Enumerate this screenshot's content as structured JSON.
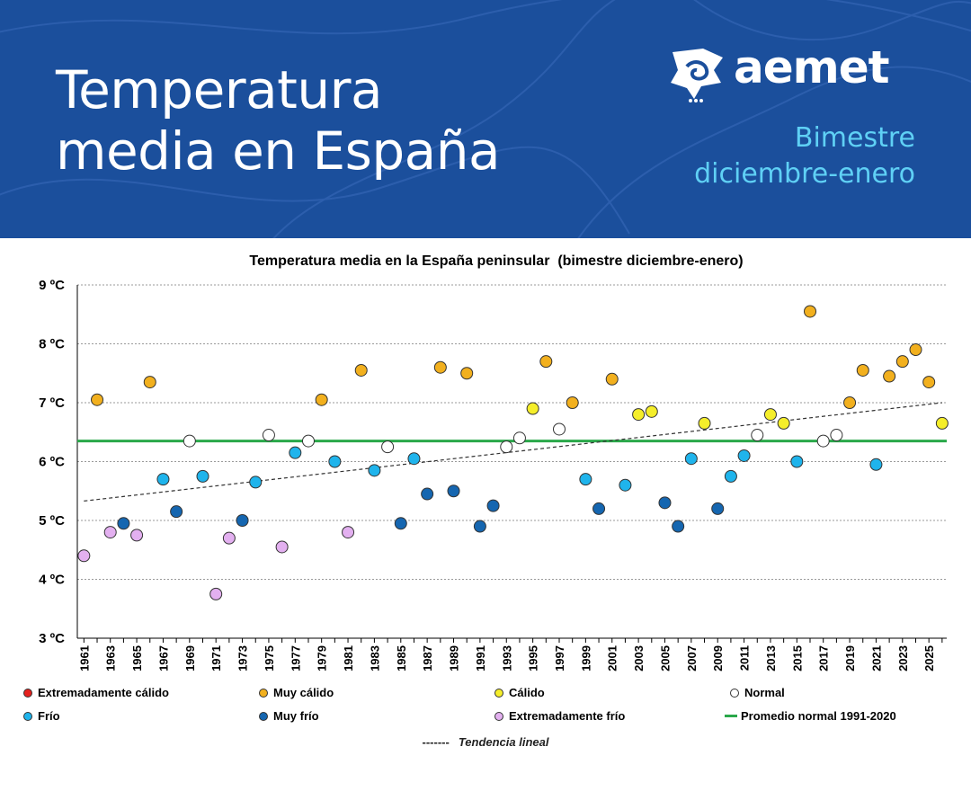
{
  "header": {
    "title": "Temperatura\nmedia en España",
    "brand": "aemet",
    "subtitle": "Bimestre\ndiciembre-enero",
    "colors": {
      "background": "#1b4f9c",
      "title": "#ffffff",
      "subtitle": "#5fd0f5"
    }
  },
  "chart_data": {
    "type": "scatter",
    "title": "Temperatura media en la España peninsular  (bimestre diciembre-enero)",
    "xlabel": "",
    "ylabel": "",
    "ylim": [
      3,
      9
    ],
    "xlim": [
      1961,
      2026
    ],
    "y_unit": "ºC",
    "y_ticks": [
      3,
      4,
      5,
      6,
      7,
      8,
      9
    ],
    "x_tick_labels": [
      1961,
      1963,
      1965,
      1967,
      1969,
      1971,
      1973,
      1975,
      1977,
      1979,
      1981,
      1983,
      1985,
      1987,
      1989,
      1991,
      1993,
      1995,
      1997,
      1999,
      2001,
      2003,
      2005,
      2007,
      2009,
      2011,
      2013,
      2015,
      2017,
      2019,
      2021,
      2023,
      2025
    ],
    "grid": true,
    "categories": {
      "ec": {
        "label": "Extremadamente cálido",
        "color": "#e5211e"
      },
      "mc": {
        "label": "Muy cálido",
        "color": "#f2b01e"
      },
      "c": {
        "label": "Cálido",
        "color": "#f5ee2a"
      },
      "n": {
        "label": "Normal",
        "color": "#ffffff"
      },
      "f": {
        "label": "Frío",
        "color": "#1fb4ec"
      },
      "mf": {
        "label": "Muy frío",
        "color": "#1566b0"
      },
      "ef": {
        "label": "Extremadamente frío",
        "color": "#e3b0f0"
      }
    },
    "points": [
      [
        1961,
        4.4,
        "ef"
      ],
      [
        1962,
        7.05,
        "mc"
      ],
      [
        1963,
        4.8,
        "ef"
      ],
      [
        1964,
        4.95,
        "mf"
      ],
      [
        1965,
        4.75,
        "ef"
      ],
      [
        1966,
        7.35,
        "mc"
      ],
      [
        1967,
        5.7,
        "f"
      ],
      [
        1968,
        5.15,
        "mf"
      ],
      [
        1969,
        6.35,
        "n"
      ],
      [
        1970,
        5.75,
        "f"
      ],
      [
        1971,
        3.75,
        "ef"
      ],
      [
        1972,
        4.7,
        "ef"
      ],
      [
        1973,
        5.0,
        "mf"
      ],
      [
        1974,
        5.65,
        "f"
      ],
      [
        1975,
        6.45,
        "n"
      ],
      [
        1976,
        4.55,
        "ef"
      ],
      [
        1977,
        6.15,
        "f"
      ],
      [
        1978,
        6.35,
        "n"
      ],
      [
        1979,
        7.05,
        "mc"
      ],
      [
        1980,
        6.0,
        "f"
      ],
      [
        1981,
        4.8,
        "ef"
      ],
      [
        1982,
        7.55,
        "mc"
      ],
      [
        1983,
        5.85,
        "f"
      ],
      [
        1984,
        6.25,
        "n"
      ],
      [
        1985,
        4.95,
        "mf"
      ],
      [
        1986,
        6.05,
        "f"
      ],
      [
        1987,
        5.45,
        "mf"
      ],
      [
        1988,
        7.6,
        "mc"
      ],
      [
        1989,
        5.5,
        "mf"
      ],
      [
        1990,
        7.5,
        "mc"
      ],
      [
        1991,
        4.9,
        "mf"
      ],
      [
        1992,
        5.25,
        "mf"
      ],
      [
        1993,
        6.25,
        "n"
      ],
      [
        1994,
        6.4,
        "n"
      ],
      [
        1995,
        6.9,
        "c"
      ],
      [
        1996,
        7.7,
        "mc"
      ],
      [
        1997,
        6.55,
        "n"
      ],
      [
        1998,
        7.0,
        "mc"
      ],
      [
        1999,
        5.7,
        "f"
      ],
      [
        2000,
        5.2,
        "mf"
      ],
      [
        2001,
        7.4,
        "mc"
      ],
      [
        2002,
        5.6,
        "f"
      ],
      [
        2003,
        6.8,
        "c"
      ],
      [
        2004,
        6.85,
        "c"
      ],
      [
        2005,
        5.3,
        "mf"
      ],
      [
        2006,
        4.9,
        "mf"
      ],
      [
        2007,
        6.05,
        "f"
      ],
      [
        2008,
        6.65,
        "c"
      ],
      [
        2009,
        5.2,
        "mf"
      ],
      [
        2010,
        5.75,
        "f"
      ],
      [
        2011,
        6.1,
        "f"
      ],
      [
        2012,
        6.45,
        "n"
      ],
      [
        2013,
        6.8,
        "c"
      ],
      [
        2014,
        6.65,
        "c"
      ],
      [
        2015,
        6.0,
        "f"
      ],
      [
        2016,
        8.55,
        "mc"
      ],
      [
        2017,
        6.35,
        "n"
      ],
      [
        2018,
        6.45,
        "n"
      ],
      [
        2019,
        7.0,
        "mc"
      ],
      [
        2020,
        7.55,
        "mc"
      ],
      [
        2021,
        5.95,
        "f"
      ],
      [
        2022,
        7.45,
        "mc"
      ],
      [
        2023,
        7.7,
        "mc"
      ],
      [
        2024,
        7.9,
        "mc"
      ],
      [
        2025,
        7.35,
        "mc"
      ],
      [
        2026,
        6.65,
        "c"
      ]
    ],
    "normal_line": {
      "label": "Promedio normal 1991-2020",
      "value": 6.35,
      "color": "#2aa84a"
    },
    "trend": {
      "label": "Tendencia lineal",
      "dash": "-------",
      "start": [
        1961,
        5.33
      ],
      "end": [
        2026,
        7.0
      ]
    }
  }
}
